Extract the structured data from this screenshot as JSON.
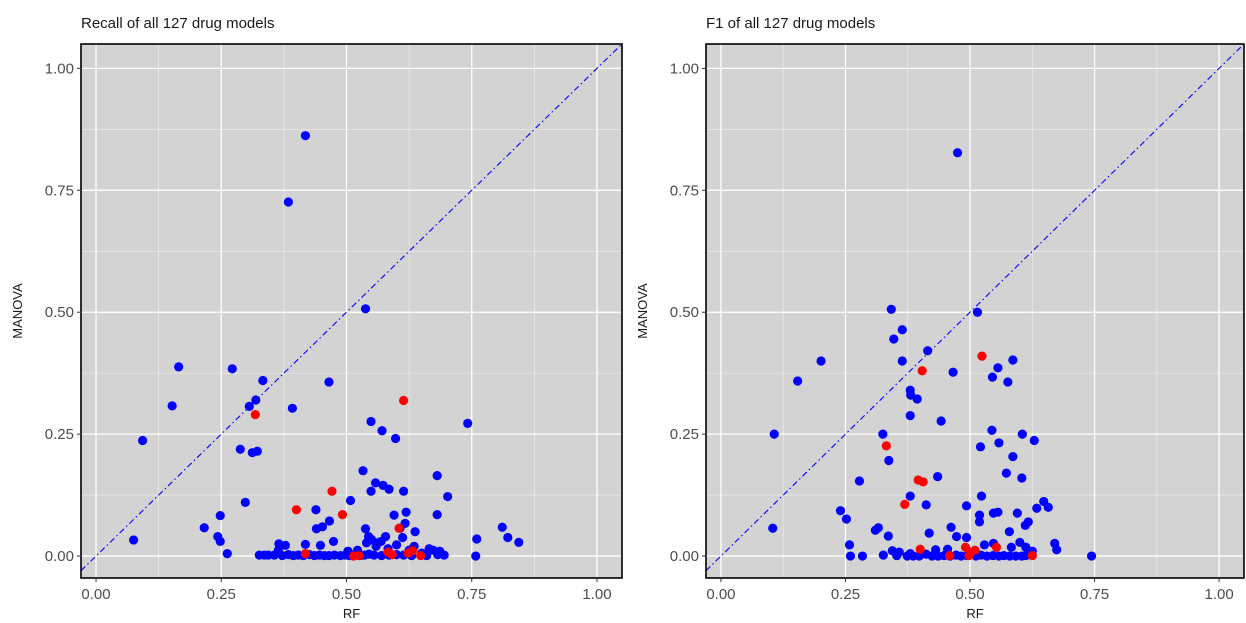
{
  "chart_data": [
    {
      "type": "scatter",
      "title": "Recall of all 127 drug models",
      "xlabel": "RF",
      "ylabel": "MANOVA",
      "xlim": [
        -0.03,
        1.05
      ],
      "ylim": [
        -0.045,
        1.05
      ],
      "xticks": [
        0.0,
        0.25,
        0.5,
        0.75,
        1.0
      ],
      "yticks": [
        0.0,
        0.25,
        0.5,
        0.75,
        1.0
      ],
      "tick_labels": [
        "0.00",
        "0.25",
        "0.50",
        "0.75",
        "1.00"
      ],
      "grid": true,
      "background": "#d3d3d3",
      "reference_line": {
        "style": "dash-dot",
        "color": "#0000ff",
        "slope": 1,
        "intercept": 0
      },
      "series": [
        {
          "color": "#0000ff",
          "points": [
            [
              0.418,
              0.862
            ],
            [
              0.384,
              0.726
            ],
            [
              0.538,
              0.507
            ],
            [
              0.165,
              0.388
            ],
            [
              0.272,
              0.384
            ],
            [
              0.333,
              0.36
            ],
            [
              0.465,
              0.357
            ],
            [
              0.152,
              0.308
            ],
            [
              0.306,
              0.307
            ],
            [
              0.319,
              0.32
            ],
            [
              0.392,
              0.303
            ],
            [
              0.742,
              0.272
            ],
            [
              0.549,
              0.276
            ],
            [
              0.571,
              0.257
            ],
            [
              0.093,
              0.237
            ],
            [
              0.598,
              0.241
            ],
            [
              0.288,
              0.219
            ],
            [
              0.312,
              0.212
            ],
            [
              0.322,
              0.215
            ],
            [
              0.533,
              0.175
            ],
            [
              0.681,
              0.165
            ],
            [
              0.558,
              0.15
            ],
            [
              0.585,
              0.137
            ],
            [
              0.549,
              0.133
            ],
            [
              0.573,
              0.145
            ],
            [
              0.614,
              0.133
            ],
            [
              0.702,
              0.122
            ],
            [
              0.298,
              0.11
            ],
            [
              0.508,
              0.114
            ],
            [
              0.439,
              0.095
            ],
            [
              0.595,
              0.084
            ],
            [
              0.681,
              0.085
            ],
            [
              0.619,
              0.09
            ],
            [
              0.248,
              0.083
            ],
            [
              0.466,
              0.072
            ],
            [
              0.452,
              0.06
            ],
            [
              0.44,
              0.056
            ],
            [
              0.607,
              0.057
            ],
            [
              0.617,
              0.067
            ],
            [
              0.637,
              0.05
            ],
            [
              0.612,
              0.038
            ],
            [
              0.538,
              0.056
            ],
            [
              0.544,
              0.04
            ],
            [
              0.55,
              0.034
            ],
            [
              0.216,
              0.058
            ],
            [
              0.243,
              0.04
            ],
            [
              0.248,
              0.03
            ],
            [
              0.075,
              0.033
            ],
            [
              0.76,
              0.035
            ],
            [
              0.811,
              0.059
            ],
            [
              0.822,
              0.038
            ],
            [
              0.844,
              0.028
            ],
            [
              0.54,
              0.027
            ],
            [
              0.559,
              0.02
            ],
            [
              0.561,
              0.027
            ],
            [
              0.569,
              0.03
            ],
            [
              0.583,
              0.015
            ],
            [
              0.6,
              0.023
            ],
            [
              0.625,
              0.012
            ],
            [
              0.635,
              0.02
            ],
            [
              0.65,
              0.006
            ],
            [
              0.665,
              0.015
            ],
            [
              0.686,
              0.01
            ],
            [
              0.682,
              0.003
            ],
            [
              0.695,
              0.002
            ],
            [
              0.63,
              0.001
            ],
            [
              0.614,
              0.002
            ],
            [
              0.6,
              0.003
            ],
            [
              0.585,
              0.002
            ],
            [
              0.57,
              0.001
            ],
            [
              0.555,
              0.002
            ],
            [
              0.545,
              0.004
            ],
            [
              0.536,
              0.002
            ],
            [
              0.527,
              0.001
            ],
            [
              0.516,
              0.002
            ],
            [
              0.506,
              0.001
            ],
            [
              0.498,
              0.002
            ],
            [
              0.488,
              0.001
            ],
            [
              0.476,
              0.002
            ],
            [
              0.465,
              0.001
            ],
            [
              0.456,
              0.001
            ],
            [
              0.446,
              0.002
            ],
            [
              0.436,
              0.001
            ],
            [
              0.426,
              0.003
            ],
            [
              0.414,
              0.001
            ],
            [
              0.404,
              0.002
            ],
            [
              0.394,
              0.001
            ],
            [
              0.384,
              0.003
            ],
            [
              0.372,
              0.001
            ],
            [
              0.364,
              0.012
            ],
            [
              0.356,
              0.002
            ],
            [
              0.344,
              0.002
            ],
            [
              0.336,
              0.002
            ],
            [
              0.326,
              0.002
            ],
            [
              0.378,
              0.022
            ],
            [
              0.448,
              0.022
            ],
            [
              0.418,
              0.024
            ],
            [
              0.262,
              0.005
            ],
            [
              0.758,
              0.0
            ],
            [
              0.365,
              0.025
            ],
            [
              0.474,
              0.03
            ],
            [
              0.503,
              0.01
            ],
            [
              0.522,
              0.012
            ],
            [
              0.578,
              0.04
            ],
            [
              0.66,
              0.001
            ],
            [
              0.673,
              0.012
            ]
          ]
        },
        {
          "color": "#ff0000",
          "points": [
            [
              0.614,
              0.319
            ],
            [
              0.318,
              0.29
            ],
            [
              0.471,
              0.133
            ],
            [
              0.4,
              0.095
            ],
            [
              0.492,
              0.085
            ],
            [
              0.605,
              0.057
            ],
            [
              0.418,
              0.005
            ],
            [
              0.514,
              0.0
            ],
            [
              0.583,
              0.008
            ],
            [
              0.623,
              0.006
            ],
            [
              0.591,
              0.003
            ],
            [
              0.632,
              0.011
            ],
            [
              0.648,
              0.001
            ],
            [
              0.525,
              0.001
            ]
          ]
        }
      ]
    },
    {
      "type": "scatter",
      "title": "F1 of all 127 drug models",
      "xlabel": "RF",
      "ylabel": "MANOVA",
      "xlim": [
        -0.03,
        1.05
      ],
      "ylim": [
        -0.045,
        1.05
      ],
      "xticks": [
        0.0,
        0.25,
        0.5,
        0.75,
        1.0
      ],
      "yticks": [
        0.0,
        0.25,
        0.5,
        0.75,
        1.0
      ],
      "tick_labels": [
        "0.00",
        "0.25",
        "0.50",
        "0.75",
        "1.00"
      ],
      "grid": true,
      "background": "#d3d3d3",
      "reference_line": {
        "style": "dash-dot",
        "color": "#0000ff",
        "slope": 1,
        "intercept": 0
      },
      "series": [
        {
          "color": "#0000ff",
          "points": [
            [
              0.475,
              0.827
            ],
            [
              0.342,
              0.506
            ],
            [
              0.515,
              0.5
            ],
            [
              0.364,
              0.464
            ],
            [
              0.347,
              0.445
            ],
            [
              0.415,
              0.421
            ],
            [
              0.586,
              0.402
            ],
            [
              0.201,
              0.4
            ],
            [
              0.364,
              0.4
            ],
            [
              0.556,
              0.386
            ],
            [
              0.466,
              0.377
            ],
            [
              0.545,
              0.367
            ],
            [
              0.154,
              0.359
            ],
            [
              0.576,
              0.357
            ],
            [
              0.38,
              0.34
            ],
            [
              0.381,
              0.33
            ],
            [
              0.394,
              0.322
            ],
            [
              0.38,
              0.288
            ],
            [
              0.442,
              0.277
            ],
            [
              0.107,
              0.25
            ],
            [
              0.325,
              0.25
            ],
            [
              0.605,
              0.25
            ],
            [
              0.544,
              0.258
            ],
            [
              0.629,
              0.237
            ],
            [
              0.558,
              0.232
            ],
            [
              0.521,
              0.224
            ],
            [
              0.586,
              0.204
            ],
            [
              0.337,
              0.196
            ],
            [
              0.573,
              0.17
            ],
            [
              0.604,
              0.16
            ],
            [
              0.435,
              0.163
            ],
            [
              0.278,
              0.154
            ],
            [
              0.38,
              0.123
            ],
            [
              0.523,
              0.123
            ],
            [
              0.412,
              0.105
            ],
            [
              0.493,
              0.103
            ],
            [
              0.634,
              0.098
            ],
            [
              0.648,
              0.112
            ],
            [
              0.657,
              0.1
            ],
            [
              0.547,
              0.088
            ],
            [
              0.556,
              0.09
            ],
            [
              0.595,
              0.088
            ],
            [
              0.617,
              0.07
            ],
            [
              0.519,
              0.084
            ],
            [
              0.519,
              0.07
            ],
            [
              0.24,
              0.093
            ],
            [
              0.252,
              0.076
            ],
            [
              0.316,
              0.058
            ],
            [
              0.31,
              0.053
            ],
            [
              0.104,
              0.057
            ],
            [
              0.462,
              0.059
            ],
            [
              0.418,
              0.047
            ],
            [
              0.493,
              0.038
            ],
            [
              0.579,
              0.05
            ],
            [
              0.611,
              0.063
            ],
            [
              0.336,
              0.041
            ],
            [
              0.473,
              0.04
            ],
            [
              0.529,
              0.023
            ],
            [
              0.547,
              0.026
            ],
            [
              0.583,
              0.018
            ],
            [
              0.6,
              0.028
            ],
            [
              0.612,
              0.018
            ],
            [
              0.625,
              0.01
            ],
            [
              0.67,
              0.026
            ],
            [
              0.674,
              0.013
            ],
            [
              0.744,
              0.0
            ],
            [
              0.258,
              0.023
            ],
            [
              0.26,
              0.0
            ],
            [
              0.284,
              0.0
            ],
            [
              0.344,
              0.011
            ],
            [
              0.358,
              0.008
            ],
            [
              0.38,
              0.005
            ],
            [
              0.374,
              0.0
            ],
            [
              0.386,
              0.0
            ],
            [
              0.398,
              0.0
            ],
            [
              0.412,
              0.004
            ],
            [
              0.424,
              0.0
            ],
            [
              0.436,
              0.0
            ],
            [
              0.448,
              0.001
            ],
            [
              0.46,
              0.0
            ],
            [
              0.472,
              0.002
            ],
            [
              0.482,
              0.0
            ],
            [
              0.494,
              0.001
            ],
            [
              0.502,
              0.006
            ],
            [
              0.512,
              0.0
            ],
            [
              0.522,
              0.002
            ],
            [
              0.534,
              0.0
            ],
            [
              0.546,
              0.001
            ],
            [
              0.558,
              0.0
            ],
            [
              0.568,
              0.001
            ],
            [
              0.58,
              0.0
            ],
            [
              0.592,
              0.0
            ],
            [
              0.604,
              0.0
            ],
            [
              0.612,
              0.001
            ],
            [
              0.455,
              0.014
            ],
            [
              0.431,
              0.013
            ],
            [
              0.326,
              0.002
            ],
            [
              0.353,
              0.001
            ]
          ]
        },
        {
          "color": "#ff0000",
          "points": [
            [
              0.524,
              0.41
            ],
            [
              0.404,
              0.38
            ],
            [
              0.332,
              0.226
            ],
            [
              0.396,
              0.156
            ],
            [
              0.406,
              0.152
            ],
            [
              0.369,
              0.106
            ],
            [
              0.4,
              0.014
            ],
            [
              0.553,
              0.018
            ],
            [
              0.491,
              0.018
            ],
            [
              0.501,
              0.008
            ],
            [
              0.498,
              0.001
            ],
            [
              0.459,
              0.001
            ],
            [
              0.51,
              0.012
            ],
            [
              0.625,
              0.001
            ]
          ]
        }
      ]
    }
  ]
}
